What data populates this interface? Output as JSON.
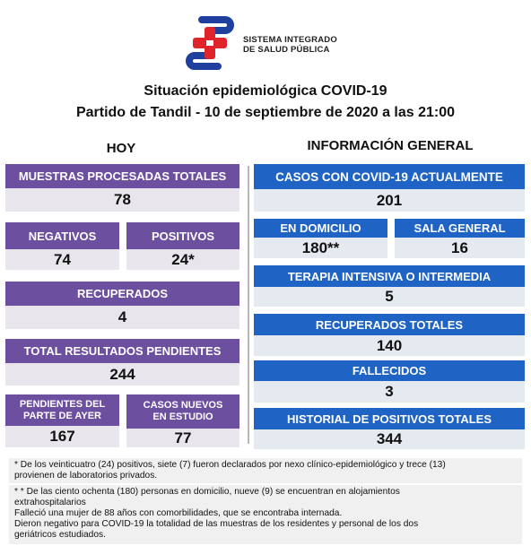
{
  "logo": {
    "line1": "SISTEMA INTEGRADO",
    "line2": "DE SALUD PÚBLICA",
    "icon": "sisp-logo-icon",
    "colors": {
      "red": "#e1242b",
      "blue": "#2040a0"
    }
  },
  "header": {
    "title": "Situación epidemiológica COVID-19",
    "subtitle": "Partido de Tandil - 10 de septiembre de 2020 a las 21:00"
  },
  "hoy": {
    "heading": "HOY",
    "muestras": {
      "label": "MUESTRAS PROCESADAS TOTALES",
      "value": "78"
    },
    "negativos": {
      "label": "NEGATIVOS",
      "value": "74"
    },
    "positivos": {
      "label": "POSITIVOS",
      "value": "24*"
    },
    "recuperados": {
      "label": "RECUPERADOS",
      "value": "4"
    },
    "pendientes": {
      "label": "TOTAL RESULTADOS PENDIENTES",
      "value": "244"
    },
    "pendientes_ayer": {
      "label_line1": "PENDIENTES DEL",
      "label_line2": "PARTE DE  AYER",
      "value": "167"
    },
    "casos_nuevos": {
      "label_line1": "CASOS NUEVOS",
      "label_line2": "EN ESTUDIO",
      "value": "77"
    }
  },
  "general": {
    "heading": "INFORMACIÓN GENERAL",
    "actuales": {
      "label": "CASOS CON COVID-19 ACTUALMENTE",
      "value": "201"
    },
    "domicilio": {
      "label": "EN DOMICILIO",
      "value": "180**"
    },
    "sala": {
      "label": "SALA GENERAL",
      "value": "16"
    },
    "terapia": {
      "label": "TERAPIA INTENSIVA O INTERMEDIA",
      "value": "5"
    },
    "recuperados_totales": {
      "label": "RECUPERADOS TOTALES",
      "value": "140"
    },
    "fallecidos": {
      "label": "FALLECIDOS",
      "value": "3"
    },
    "historial": {
      "label": "HISTORIAL DE POSITIVOS TOTALES",
      "value": "344"
    }
  },
  "footnotes": {
    "note1_line1": "* De los veinticuatro (24) positivos, siete (7)  fueron declarados por nexo clínico-epidemiológico  y trece (13)",
    "note1_line2": "provienen de laboratorios privados.",
    "note2_line1": "* * De las ciento ochenta (180) personas en domicilio,  nueve (9) se encuentran en alojamientos",
    "note2_line2": "extrahospitalarios",
    "note2_line3": "Falleció una mujer de 88 años con comorbilidades, que se encontraba internada.",
    "note2_line4": "Dieron negativo para COVID-19 la totalidad de las muestras de los residentes y personal de los dos",
    "note2_line5": "geriátricos estudiados."
  },
  "colors": {
    "purple": "#6d4fa0",
    "blue": "#1f64c4"
  }
}
